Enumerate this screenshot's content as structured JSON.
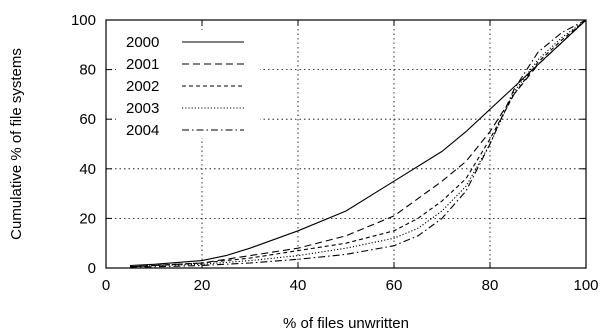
{
  "chart_data": {
    "type": "line",
    "xlabel": "% of files unwritten",
    "ylabel": "Cumulative % of file systems",
    "xlim": [
      0,
      100
    ],
    "ylim": [
      0,
      100
    ],
    "xticks": [
      "0",
      "20",
      "40",
      "60",
      "80",
      "100"
    ],
    "yticks": [
      "0",
      "20",
      "40",
      "60",
      "80",
      "100"
    ],
    "grid": true,
    "legend_position": "top-left",
    "series": [
      {
        "name": "2000",
        "dash": "solid",
        "points": [
          [
            5,
            1
          ],
          [
            10,
            1.5
          ],
          [
            20,
            3
          ],
          [
            25,
            5
          ],
          [
            30,
            8
          ],
          [
            40,
            15
          ],
          [
            50,
            23
          ],
          [
            60,
            35
          ],
          [
            70,
            47
          ],
          [
            75,
            55
          ],
          [
            80,
            64
          ],
          [
            85,
            73
          ],
          [
            90,
            82
          ],
          [
            95,
            91
          ],
          [
            100,
            100
          ]
        ]
      },
      {
        "name": "2001",
        "dash": "long-dash",
        "points": [
          [
            5,
            0.5
          ],
          [
            10,
            1
          ],
          [
            20,
            2
          ],
          [
            30,
            5
          ],
          [
            40,
            8
          ],
          [
            50,
            13
          ],
          [
            60,
            21
          ],
          [
            65,
            28
          ],
          [
            70,
            35
          ],
          [
            75,
            43
          ],
          [
            80,
            55
          ],
          [
            85,
            70
          ],
          [
            90,
            82
          ],
          [
            95,
            91
          ],
          [
            100,
            100
          ]
        ]
      },
      {
        "name": "2002",
        "dash": "short-dash",
        "points": [
          [
            5,
            0.5
          ],
          [
            10,
            1
          ],
          [
            20,
            2
          ],
          [
            30,
            4
          ],
          [
            40,
            7
          ],
          [
            50,
            10
          ],
          [
            60,
            15
          ],
          [
            65,
            20
          ],
          [
            70,
            27
          ],
          [
            75,
            36
          ],
          [
            80,
            52
          ],
          [
            85,
            70
          ],
          [
            90,
            83
          ],
          [
            95,
            92
          ],
          [
            100,
            100
          ]
        ]
      },
      {
        "name": "2003",
        "dash": "dotted",
        "points": [
          [
            5,
            0.5
          ],
          [
            10,
            1
          ],
          [
            20,
            1.5
          ],
          [
            30,
            3
          ],
          [
            40,
            5
          ],
          [
            50,
            8
          ],
          [
            60,
            12
          ],
          [
            65,
            16
          ],
          [
            70,
            23
          ],
          [
            75,
            33
          ],
          [
            80,
            50
          ],
          [
            85,
            71
          ],
          [
            90,
            84
          ],
          [
            95,
            93
          ],
          [
            100,
            100
          ]
        ]
      },
      {
        "name": "2004",
        "dash": "dash-dot",
        "points": [
          [
            5,
            0.5
          ],
          [
            10,
            0.5
          ],
          [
            20,
            1
          ],
          [
            30,
            2
          ],
          [
            40,
            3.5
          ],
          [
            50,
            5.5
          ],
          [
            60,
            9
          ],
          [
            65,
            13
          ],
          [
            70,
            20
          ],
          [
            75,
            31
          ],
          [
            80,
            50
          ],
          [
            85,
            72
          ],
          [
            90,
            87
          ],
          [
            95,
            95
          ],
          [
            100,
            100
          ]
        ]
      }
    ]
  }
}
